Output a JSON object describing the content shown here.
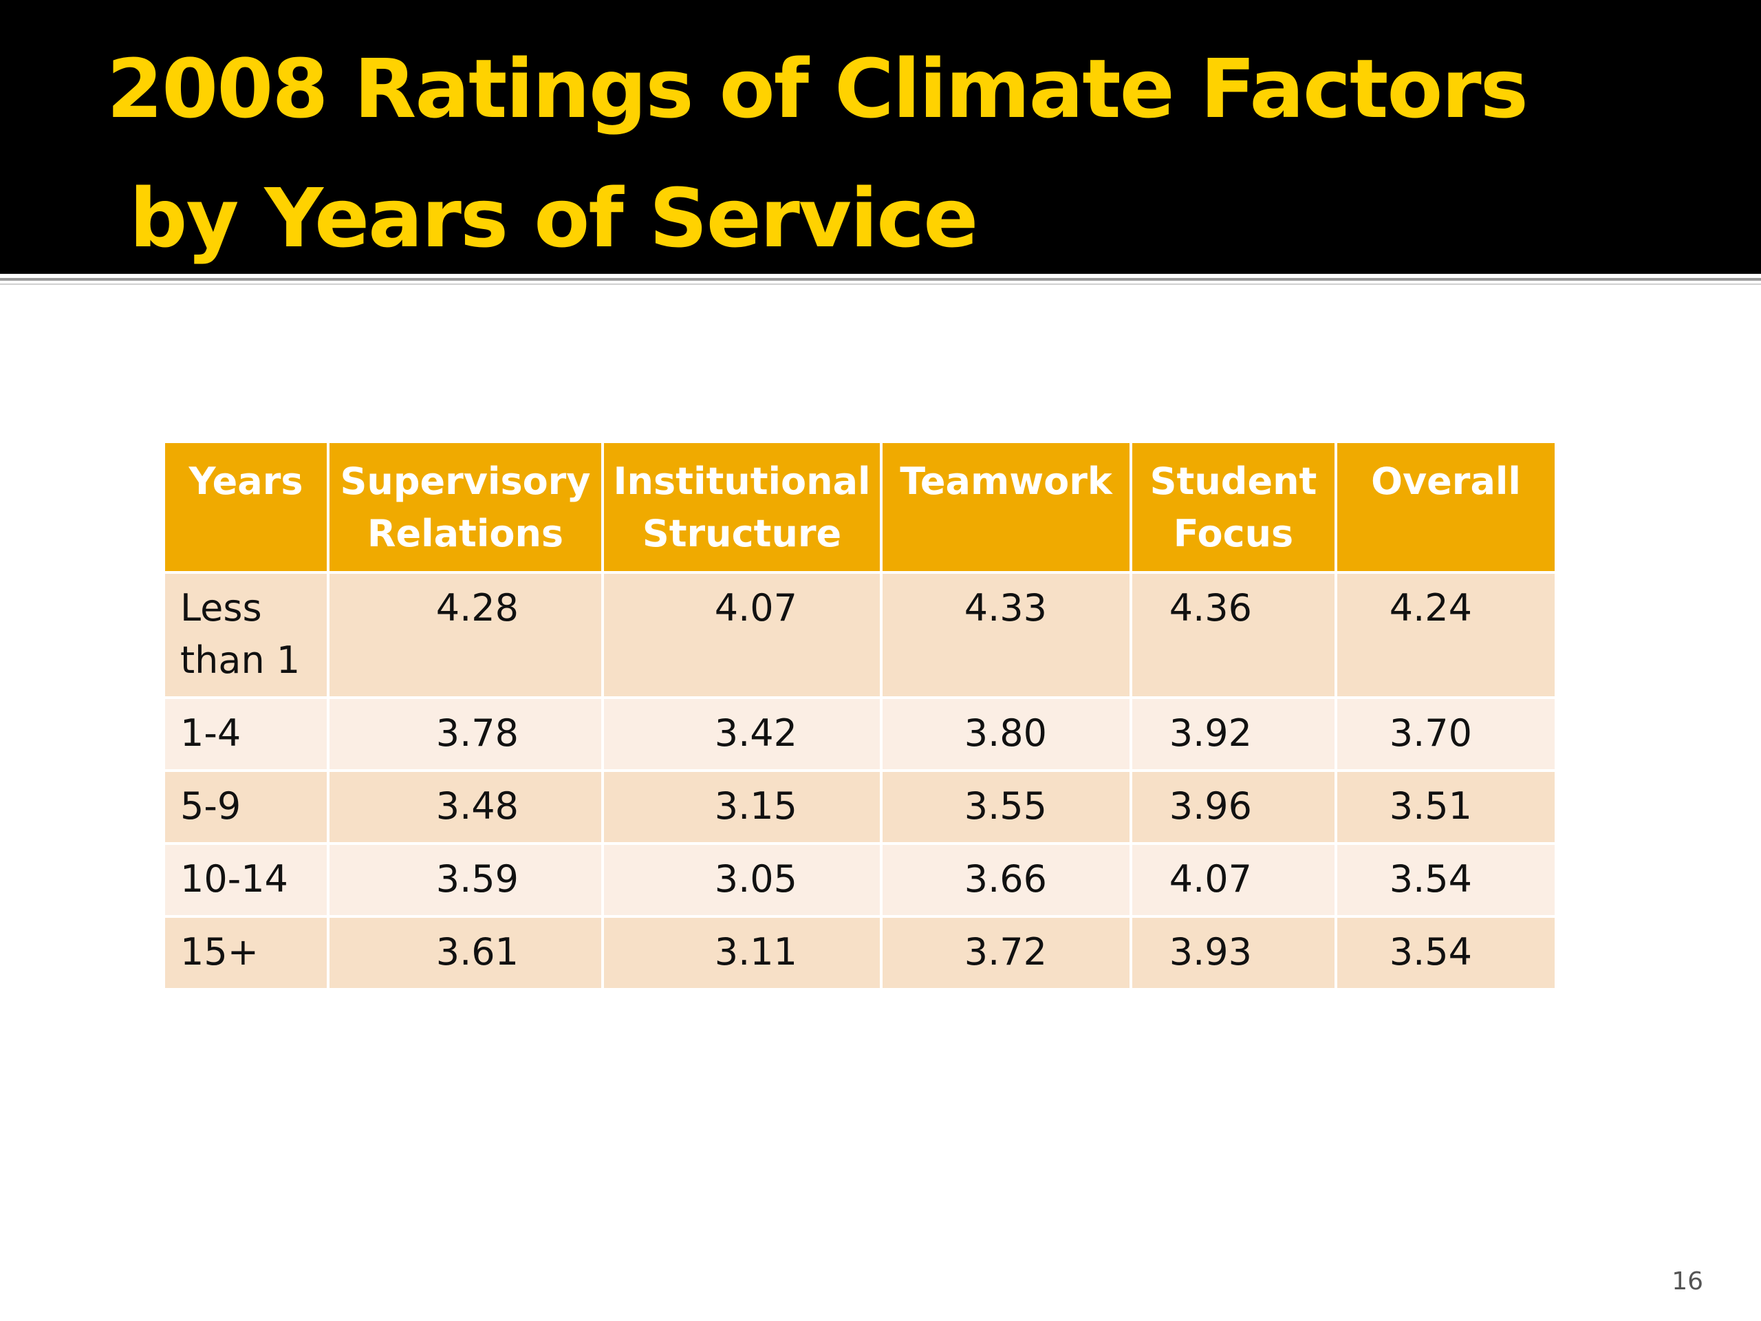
{
  "slide": {
    "title_line1": "2008 Ratings of Climate Factors",
    "title_line2": "by Years of Service",
    "page_number": "16",
    "colors": {
      "title_bar": "#000000",
      "title_text": "#FFD200",
      "header_fill": "#F0AA00",
      "row_fill_dark": "#F7E0C7",
      "row_fill_light": "#FBEEE4"
    }
  },
  "table": {
    "headers": [
      "Years",
      "Supervisory Relations",
      "Institutional Structure",
      "Teamwork",
      "Student Focus",
      "Overall"
    ],
    "rows": [
      [
        "Less than 1",
        "4.28",
        "4.07",
        "4.33",
        "4.36",
        "4.24"
      ],
      [
        "1-4",
        "3.78",
        "3.42",
        "3.80",
        "3.92",
        "3.70"
      ],
      [
        "5-9",
        "3.48",
        "3.15",
        "3.55",
        "3.96",
        "3.51"
      ],
      [
        "10-14",
        "3.59",
        "3.05",
        "3.66",
        "4.07",
        "3.54"
      ],
      [
        "15+",
        "3.61",
        "3.11",
        "3.72",
        "3.93",
        "3.54"
      ]
    ]
  }
}
